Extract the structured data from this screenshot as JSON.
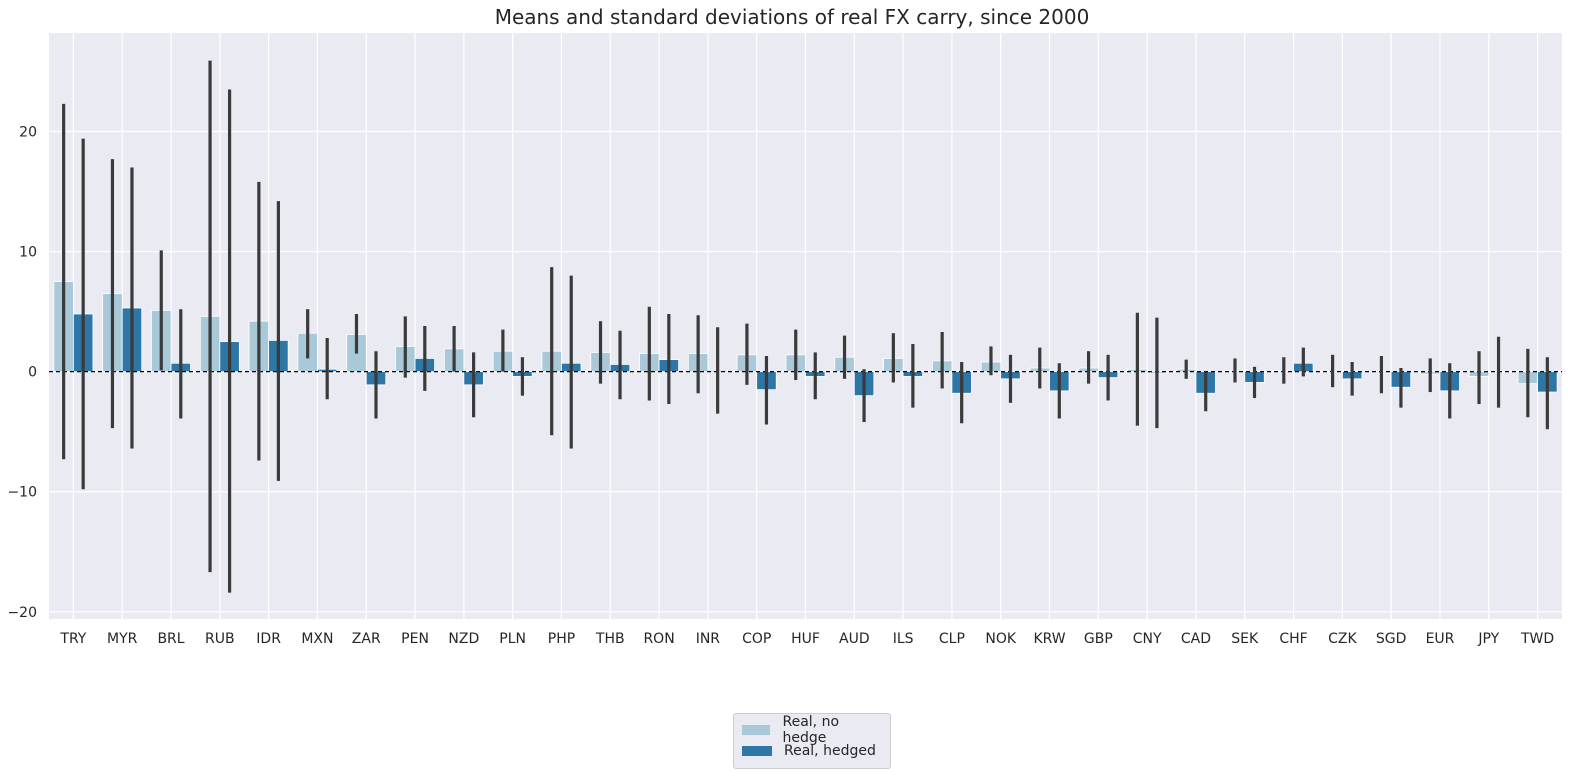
{
  "chart_data": {
    "type": "bar",
    "title": "Means and standard deviations of real FX carry, since 2000",
    "xlabel": "",
    "ylabel": "",
    "ylim": [
      -20.6,
      28.2
    ],
    "yticks": [
      -20,
      -10,
      0,
      10,
      20
    ],
    "grid": true,
    "legend_position": "bottom-center",
    "zero_line": "dashed",
    "colors": {
      "plot_background": "#eaeaf2",
      "grid": "#ffffff",
      "error_bar": "#3a3a3a"
    },
    "categories": [
      "TRY",
      "MYR",
      "BRL",
      "RUB",
      "IDR",
      "MXN",
      "ZAR",
      "PEN",
      "NZD",
      "PLN",
      "PHP",
      "THB",
      "RON",
      "INR",
      "COP",
      "HUF",
      "AUD",
      "ILS",
      "CLP",
      "NOK",
      "KRW",
      "GBP",
      "CNY",
      "CAD",
      "SEK",
      "CHF",
      "CZK",
      "SGD",
      "EUR",
      "JPY",
      "TWD"
    ],
    "series": [
      {
        "name": "Real, no hedge",
        "color": "#a9c8d8",
        "values": [
          7.5,
          6.5,
          5.1,
          4.6,
          4.2,
          3.2,
          3.1,
          2.1,
          1.9,
          1.7,
          1.7,
          1.6,
          1.5,
          1.5,
          1.4,
          1.4,
          1.2,
          1.1,
          0.9,
          0.8,
          0.3,
          0.3,
          0.2,
          0.2,
          0.1,
          0.1,
          0.0,
          -0.1,
          -0.2,
          -0.4,
          -1.0
        ],
        "error_low": [
          -7.3,
          -4.7,
          0.1,
          -16.7,
          -7.4,
          1.1,
          1.5,
          -0.5,
          0.0,
          0.0,
          -5.3,
          -1.0,
          -2.4,
          -1.8,
          -1.1,
          -0.7,
          -0.6,
          -0.9,
          -1.4,
          -0.3,
          -1.4,
          -1.0,
          -4.5,
          -0.6,
          -0.9,
          -1.0,
          -1.3,
          -1.8,
          -1.7,
          -2.7,
          -3.8
        ],
        "error_high": [
          22.3,
          17.7,
          10.1,
          25.9,
          15.8,
          5.2,
          4.8,
          4.6,
          3.8,
          3.5,
          8.7,
          4.2,
          5.4,
          4.7,
          4.0,
          3.5,
          3.0,
          3.2,
          3.3,
          2.1,
          2.0,
          1.7,
          4.9,
          1.0,
          1.1,
          1.2,
          1.4,
          1.3,
          1.1,
          1.7,
          1.9
        ]
      },
      {
        "name": "Real, hedged",
        "color": "#2e76a6",
        "values": [
          4.8,
          5.3,
          0.7,
          2.5,
          2.6,
          0.2,
          -1.1,
          1.1,
          -1.1,
          -0.4,
          0.7,
          0.6,
          1.0,
          0.1,
          -1.5,
          -0.4,
          -2.0,
          -0.4,
          -1.8,
          -0.6,
          -1.6,
          -0.5,
          -0.1,
          -1.8,
          -0.9,
          0.7,
          -0.6,
          -1.3,
          -1.6,
          0.0,
          -1.7
        ],
        "error_low": [
          -9.8,
          -6.4,
          -3.9,
          -18.4,
          -9.1,
          -2.3,
          -3.9,
          -1.6,
          -3.8,
          -2.0,
          -6.4,
          -2.3,
          -2.7,
          -3.5,
          -4.4,
          -2.3,
          -4.2,
          -3.0,
          -4.3,
          -2.6,
          -3.9,
          -2.4,
          -4.7,
          -3.3,
          -2.2,
          -0.4,
          -2.0,
          -3.0,
          -3.9,
          -3.0,
          -4.8
        ],
        "error_high": [
          19.4,
          17.0,
          5.2,
          23.5,
          14.2,
          2.8,
          1.7,
          3.8,
          1.6,
          1.2,
          8.0,
          3.4,
          4.8,
          3.7,
          1.3,
          1.6,
          0.2,
          2.3,
          0.8,
          1.4,
          0.7,
          1.4,
          4.5,
          0.0,
          0.4,
          2.0,
          0.8,
          0.3,
          0.7,
          2.9,
          1.2
        ]
      }
    ]
  }
}
